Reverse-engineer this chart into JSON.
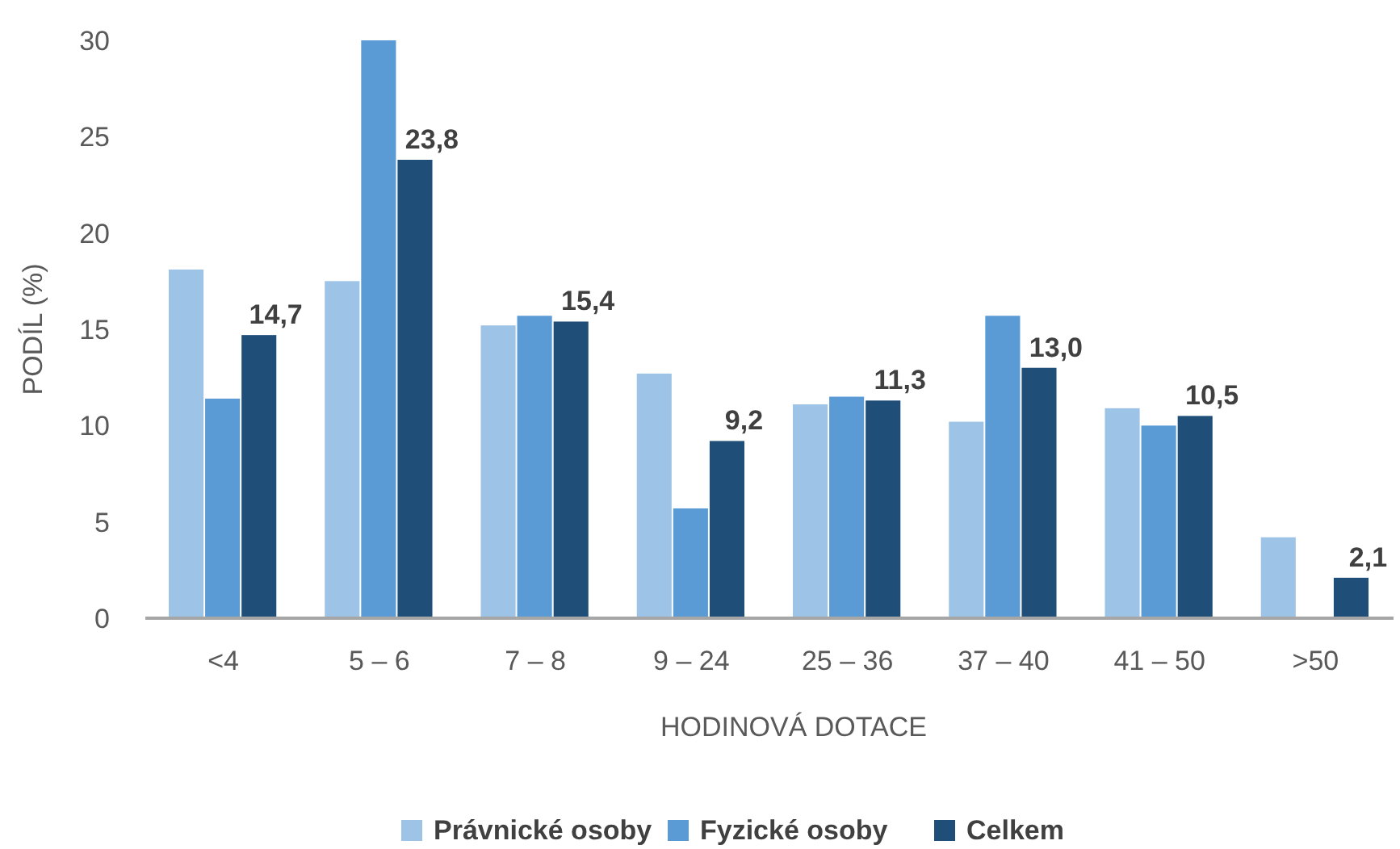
{
  "chart_data": {
    "type": "bar",
    "xlabel": "HODINOVÁ DOTACE",
    "ylabel": "PODÍL (%)",
    "categories": [
      "<4",
      "5 – 6",
      "7 – 8",
      "9 – 24",
      "25 – 36",
      "37 – 40",
      "41 – 50",
      ">50"
    ],
    "series": [
      {
        "name": "Právnické osoby",
        "color": "#9dc3e6",
        "values": [
          18.1,
          17.5,
          15.2,
          12.7,
          11.1,
          10.2,
          10.9,
          4.2
        ]
      },
      {
        "name": "Fyzické osoby",
        "color": "#5b9bd5",
        "values": [
          11.4,
          30,
          15.7,
          5.7,
          11.5,
          15.7,
          10.0,
          null
        ]
      },
      {
        "name": "Celkem",
        "color": "#1f4e79",
        "values": [
          14.7,
          23.8,
          15.4,
          9.2,
          11.3,
          13.0,
          10.5,
          2.1
        ],
        "value_labels": [
          "14,7",
          "23,8",
          "15,4",
          "9,2",
          "11,3",
          "13,0",
          "10,5",
          "2,1"
        ]
      }
    ],
    "ylim": [
      0,
      30
    ],
    "yticks": [
      0,
      5,
      10,
      15,
      20,
      25,
      30
    ],
    "legend": "bottom"
  }
}
